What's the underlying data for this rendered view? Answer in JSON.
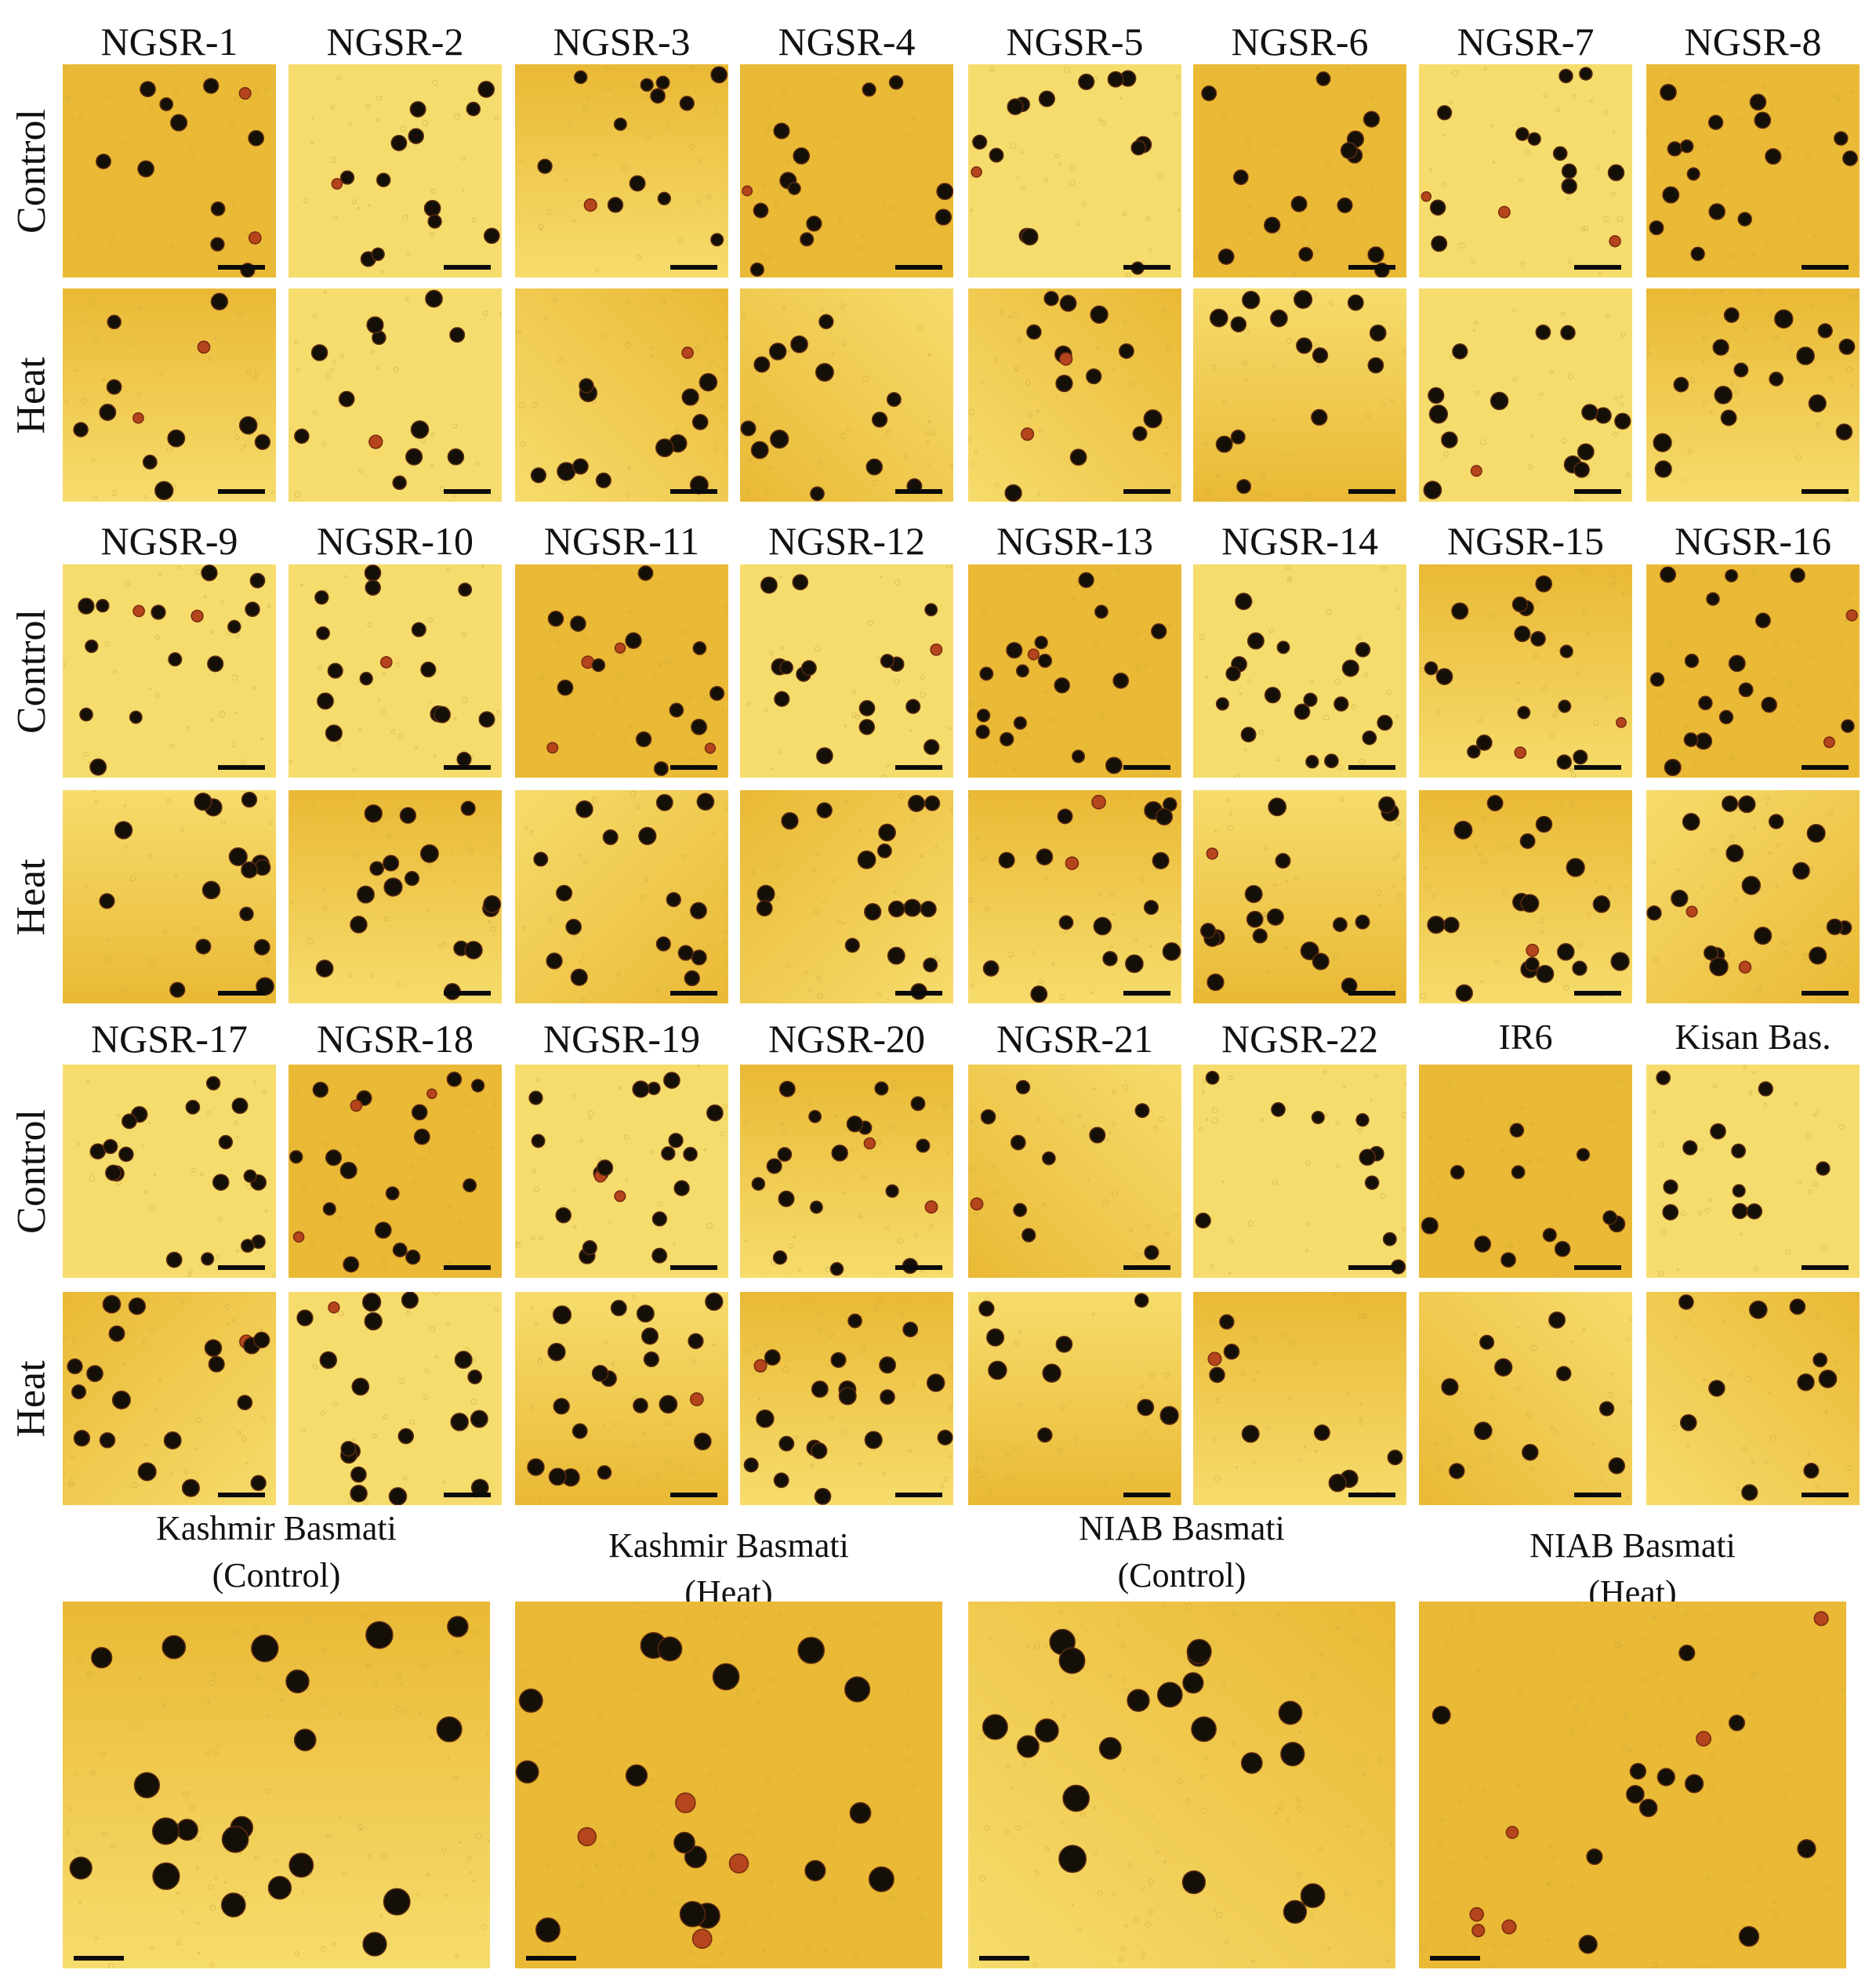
{
  "sections": [
    {
      "varieties": [
        "NGSR-1",
        "NGSR-2",
        "NGSR-3",
        "NGSR-4",
        "NGSR-5",
        "NGSR-6",
        "NGSR-7",
        "NGSR-8"
      ]
    },
    {
      "varieties": [
        "NGSR-9",
        "NGSR-10",
        "NGSR-11",
        "NGSR-12",
        "NGSR-13",
        "NGSR-14",
        "NGSR-15",
        "NGSR-16"
      ]
    },
    {
      "varieties": [
        "NGSR-17",
        "NGSR-18",
        "NGSR-19",
        "NGSR-20",
        "NGSR-21",
        "NGSR-22",
        "IR6",
        "Kisan Bas."
      ]
    }
  ],
  "row_labels": {
    "control": "Control",
    "heat": "Heat"
  },
  "bottom_panels": [
    {
      "line1": "Kashmir Basmati",
      "line2": "(Control)"
    },
    {
      "line1": "Kashmir Basmati",
      "line2": "(Heat)"
    },
    {
      "line1": "NIAB Basmati",
      "line2": "(Control)"
    },
    {
      "line1": "NIAB Basmati",
      "line2": "(Heat)"
    }
  ],
  "colors": {
    "background_light": "#f6dc6c",
    "background_dark": "#eab935",
    "pollen_fertile": "#141008",
    "pollen_sterile": "#b5451c",
    "scale_bar": "#0b0b0b"
  }
}
